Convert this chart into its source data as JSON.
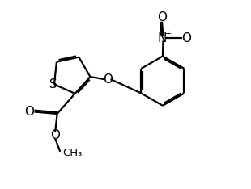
{
  "bg_color": "#ffffff",
  "line_color": "#000000",
  "line_width": 1.6,
  "dbo": 0.06,
  "font_size": 10,
  "figsize": [
    3.1,
    2.34
  ],
  "dpi": 100,
  "xlim": [
    0,
    10
  ],
  "ylim": [
    0,
    7.6
  ]
}
